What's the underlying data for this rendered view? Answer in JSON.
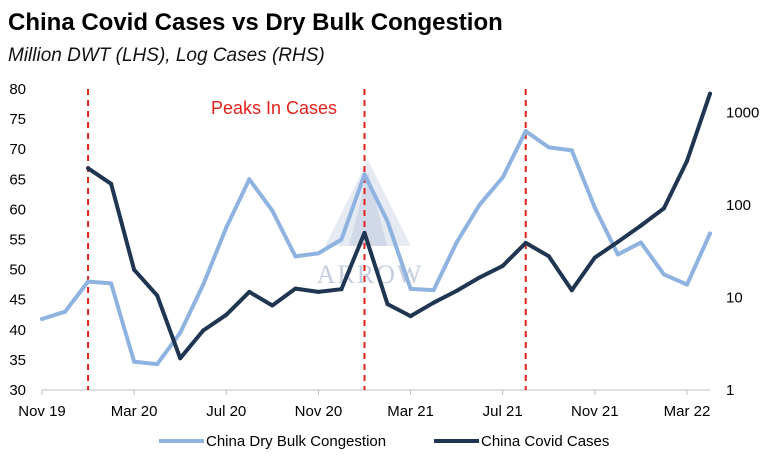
{
  "chart_data": {
    "type": "line",
    "title": "China Covid Cases vs Dry Bulk Congestion",
    "subtitle": "Million DWT (LHS), Log Cases (RHS)",
    "x_labels": [
      "Nov 19",
      "Mar 20",
      "Jul 20",
      "Nov 20",
      "Mar 21",
      "Jul 21",
      "Nov 21",
      "Mar 22"
    ],
    "x_label_months": [
      0,
      4,
      8,
      12,
      16,
      20,
      24,
      28
    ],
    "x_range_months": [
      0,
      29
    ],
    "y_left": {
      "min": 30,
      "max": 80,
      "step": 5,
      "ticks": [
        30,
        35,
        40,
        45,
        50,
        55,
        60,
        65,
        70,
        75,
        80
      ]
    },
    "y_right": {
      "scale": "log",
      "min": 1,
      "max": 1800,
      "ticks": [
        1,
        10,
        100,
        1000
      ],
      "tick_labels": [
        "1",
        "10",
        "100",
        "1000"
      ]
    },
    "series": [
      {
        "name": "China Dry Bulk Congestion",
        "axis": "left",
        "color": "#8fb3e0",
        "x": [
          0,
          1,
          2,
          3,
          4,
          5,
          6,
          7,
          8,
          9,
          10,
          11,
          12,
          13,
          14,
          15,
          16,
          17,
          18,
          19,
          20,
          21,
          22,
          23,
          24,
          25,
          26,
          27,
          28,
          29
        ],
        "values": [
          41.8,
          43,
          48,
          47.7,
          34.7,
          34.3,
          39.5,
          47.5,
          57,
          65,
          59.8,
          52.2,
          52.7,
          55,
          65.8,
          58,
          46.8,
          46.6,
          54.5,
          60.8,
          65.3,
          73,
          70.3,
          69.8,
          60.3,
          52.5,
          54.5,
          49.2,
          47.5,
          56
        ]
      },
      {
        "name": "China Covid Cases",
        "axis": "right",
        "color": "#1f3552",
        "x": [
          2,
          3,
          4,
          5,
          6,
          7,
          8,
          9,
          10,
          11,
          12,
          13,
          14,
          15,
          16,
          17,
          18,
          19,
          20,
          21,
          22,
          23,
          24,
          25,
          26,
          27,
          28,
          29
        ],
        "values": [
          250,
          170,
          20,
          10.5,
          2.2,
          4.4,
          6.5,
          11.5,
          8.2,
          12.5,
          11.5,
          12.3,
          50,
          8.5,
          6.3,
          8.8,
          11.8,
          16.5,
          22,
          39,
          28,
          12,
          27,
          40,
          60,
          92,
          300,
          1600
        ]
      }
    ],
    "vertical_markers": {
      "label": "Peaks In Cases",
      "color": "#e3221c",
      "x_months": [
        2,
        14,
        21
      ]
    },
    "watermark": "ARROW",
    "legend_position": "bottom"
  }
}
